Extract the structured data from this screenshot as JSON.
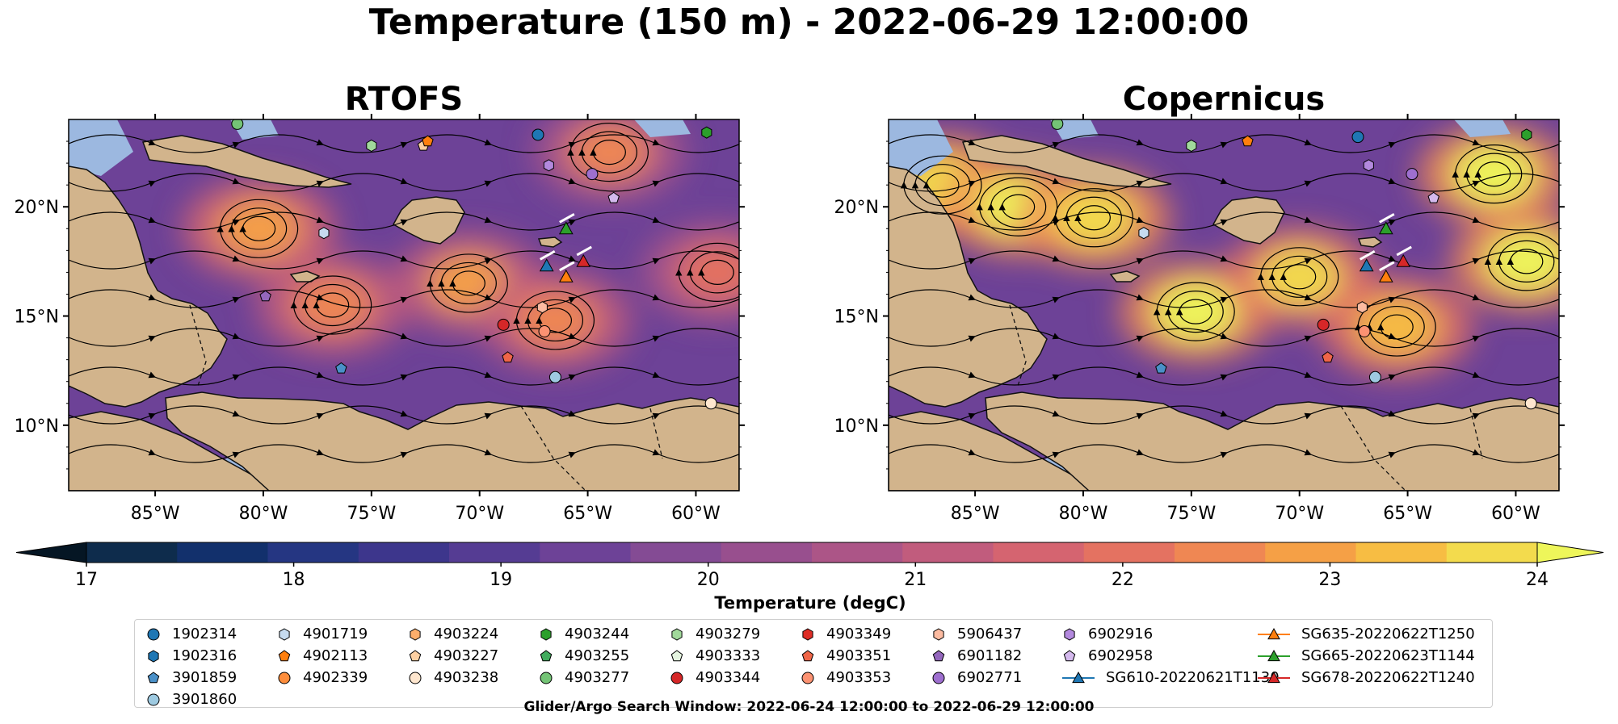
{
  "figure": {
    "title": "Temperature (150 m) - 2022-06-29 12:00:00",
    "footer": "Glider/Argo Search Window: 2022-06-24 12:00:00 to 2022-06-29 12:00:00"
  },
  "chart_data": [
    {
      "type": "heatmap",
      "title": "RTOFS",
      "xlim": [
        -89,
        -58
      ],
      "ylim": [
        7,
        24
      ],
      "x_ticks": [
        -85,
        -80,
        -75,
        -70,
        -65,
        -60
      ],
      "x_tick_labels": [
        "85°W",
        "80°W",
        "75°W",
        "70°W",
        "65°W",
        "60°W"
      ],
      "y_ticks": [
        10,
        15,
        20
      ],
      "y_tick_labels": [
        "10°N",
        "15°N",
        "20°N"
      ],
      "warm_cores": [
        {
          "lon": -80.2,
          "lat": 19.0,
          "value": 23.0
        },
        {
          "lon": -76.8,
          "lat": 15.5,
          "value": 22.5
        },
        {
          "lon": -70.5,
          "lat": 16.5,
          "value": 22.8
        },
        {
          "lon": -66.5,
          "lat": 14.8,
          "value": 22.5
        },
        {
          "lon": -64.0,
          "lat": 22.5,
          "value": 22.3
        },
        {
          "lon": -59.0,
          "lat": 17.0,
          "value": 22.0
        }
      ],
      "floats": [
        {
          "id": "1902314",
          "lon": -67.3,
          "lat": 23.3
        },
        {
          "id": "4903244",
          "lon": -59.5,
          "lat": 23.4
        },
        {
          "id": "4903277",
          "lon": -81.2,
          "lat": 23.8
        },
        {
          "id": "4903279",
          "lon": -75.0,
          "lat": 22.8
        },
        {
          "id": "4903227",
          "lon": -72.6,
          "lat": 22.8
        },
        {
          "id": "4902113",
          "lon": -72.4,
          "lat": 23.0
        },
        {
          "id": "6902916",
          "lon": -66.8,
          "lat": 21.9
        },
        {
          "id": "6902771",
          "lon": -64.8,
          "lat": 21.5
        },
        {
          "id": "6902958",
          "lon": -63.8,
          "lat": 20.4
        },
        {
          "id": "4901719",
          "lon": -77.2,
          "lat": 18.8
        },
        {
          "id": "5906437",
          "lon": -67.1,
          "lat": 15.4
        },
        {
          "id": "4903344",
          "lon": -68.9,
          "lat": 14.6
        },
        {
          "id": "4903353",
          "lon": -67.0,
          "lat": 14.3
        },
        {
          "id": "4903351",
          "lon": -68.7,
          "lat": 13.1
        },
        {
          "id": "3901859",
          "lon": -76.4,
          "lat": 12.6
        },
        {
          "id": "3901860",
          "lon": -66.5,
          "lat": 12.2
        },
        {
          "id": "4903238",
          "lon": -59.3,
          "lat": 11.0
        },
        {
          "id": "6901182",
          "lon": -79.9,
          "lat": 15.9
        }
      ],
      "gliders": [
        {
          "id": "SG610-20220621T1130",
          "lon": -66.9,
          "lat": 17.3
        },
        {
          "id": "SG635-20220622T1250",
          "lon": -66.0,
          "lat": 16.8
        },
        {
          "id": "SG665-20220623T1144",
          "lon": -66.0,
          "lat": 19.0
        },
        {
          "id": "SG678-20220622T1240",
          "lon": -65.2,
          "lat": 17.5
        }
      ]
    },
    {
      "type": "heatmap",
      "title": "Copernicus",
      "xlim": [
        -89,
        -58
      ],
      "ylim": [
        7,
        24
      ],
      "x_ticks": [
        -85,
        -80,
        -75,
        -70,
        -65,
        -60
      ],
      "x_tick_labels": [
        "85°W",
        "80°W",
        "75°W",
        "70°W",
        "65°W",
        "60°W"
      ],
      "y_ticks": [
        10,
        15,
        20
      ],
      "y_tick_labels": [
        "10°N",
        "15°N",
        "20°N"
      ],
      "warm_cores": [
        {
          "lon": -86.5,
          "lat": 21.0,
          "value": 23.8
        },
        {
          "lon": -83.0,
          "lat": 20.0,
          "value": 24.0
        },
        {
          "lon": -79.5,
          "lat": 19.5,
          "value": 23.8
        },
        {
          "lon": -74.8,
          "lat": 15.2,
          "value": 24.0
        },
        {
          "lon": -70.0,
          "lat": 16.8,
          "value": 23.7
        },
        {
          "lon": -61.0,
          "lat": 21.5,
          "value": 24.0
        },
        {
          "lon": -59.5,
          "lat": 17.5,
          "value": 24.0
        },
        {
          "lon": -65.5,
          "lat": 14.5,
          "value": 23.5
        }
      ],
      "floats": [
        {
          "id": "1902314",
          "lon": -67.3,
          "lat": 23.2
        },
        {
          "id": "4903244",
          "lon": -59.5,
          "lat": 23.3
        },
        {
          "id": "4903277",
          "lon": -81.2,
          "lat": 23.8
        },
        {
          "id": "4903279",
          "lon": -75.0,
          "lat": 22.8
        },
        {
          "id": "4902113",
          "lon": -72.4,
          "lat": 23.0
        },
        {
          "id": "6902916",
          "lon": -66.8,
          "lat": 21.9
        },
        {
          "id": "6902771",
          "lon": -64.8,
          "lat": 21.5
        },
        {
          "id": "6902958",
          "lon": -63.8,
          "lat": 20.4
        },
        {
          "id": "4901719",
          "lon": -77.2,
          "lat": 18.8
        },
        {
          "id": "5906437",
          "lon": -67.1,
          "lat": 15.4
        },
        {
          "id": "4903344",
          "lon": -68.9,
          "lat": 14.6
        },
        {
          "id": "4903353",
          "lon": -67.0,
          "lat": 14.3
        },
        {
          "id": "4903351",
          "lon": -68.7,
          "lat": 13.1
        },
        {
          "id": "3901859",
          "lon": -76.4,
          "lat": 12.6
        },
        {
          "id": "3901860",
          "lon": -66.5,
          "lat": 12.2
        },
        {
          "id": "4903238",
          "lon": -59.3,
          "lat": 11.0
        }
      ],
      "gliders": [
        {
          "id": "SG610-20220621T1130",
          "lon": -66.9,
          "lat": 17.3
        },
        {
          "id": "SG635-20220622T1250",
          "lon": -66.0,
          "lat": 16.8
        },
        {
          "id": "SG665-20220623T1144",
          "lon": -66.0,
          "lat": 19.0
        },
        {
          "id": "SG678-20220622T1240",
          "lon": -65.2,
          "lat": 17.5
        }
      ]
    }
  ],
  "colorbar": {
    "label": "Temperature (degC)",
    "min": 17,
    "max": 24,
    "step": 0.5,
    "ticks": [
      "17",
      "18",
      "19",
      "20",
      "21",
      "22",
      "23",
      "24"
    ],
    "colors": [
      "#0e2c4c",
      "#12306c",
      "#253682",
      "#3d368c",
      "#553c93",
      "#6d4297",
      "#844b94",
      "#984f8e",
      "#ac5587",
      "#c15c7d",
      "#d56470",
      "#e47261",
      "#ef8753",
      "#f5a046",
      "#f7bd43",
      "#f3db4d"
    ],
    "extend_low": "#051624",
    "extend_high": "#eef65a"
  },
  "legend": {
    "columns": [
      [
        {
          "label": "1902314",
          "marker": "circle",
          "color": "#1f77b4"
        },
        {
          "label": "1902316",
          "marker": "hexagon",
          "color": "#1f77b4"
        },
        {
          "label": "3901859",
          "marker": "pentagon",
          "color": "#4a90c8"
        },
        {
          "label": "3901860",
          "marker": "circle",
          "color": "#9ecae1"
        }
      ],
      [
        {
          "label": "4901719",
          "marker": "hexagon",
          "color": "#c6dbef"
        },
        {
          "label": "4902113",
          "marker": "pentagon",
          "color": "#ff7f0e"
        },
        {
          "label": "4902339",
          "marker": "circle",
          "color": "#fd8d3c"
        }
      ],
      [
        {
          "label": "4903224",
          "marker": "hexagon",
          "color": "#fdae6b"
        },
        {
          "label": "4903227",
          "marker": "pentagon",
          "color": "#fdd0a2"
        },
        {
          "label": "4903238",
          "marker": "circle",
          "color": "#fee6ce"
        }
      ],
      [
        {
          "label": "4903244",
          "marker": "hexagon",
          "color": "#2ca02c"
        },
        {
          "label": "4903255",
          "marker": "pentagon",
          "color": "#41ab5d"
        },
        {
          "label": "4903277",
          "marker": "circle",
          "color": "#74c476"
        }
      ],
      [
        {
          "label": "4903279",
          "marker": "hexagon",
          "color": "#a1d99b"
        },
        {
          "label": "4903333",
          "marker": "pentagon",
          "color": "#e5f5e0"
        },
        {
          "label": "4903344",
          "marker": "circle",
          "color": "#d62728"
        }
      ],
      [
        {
          "label": "4903349",
          "marker": "hexagon",
          "color": "#de2d26"
        },
        {
          "label": "4903351",
          "marker": "pentagon",
          "color": "#ef6548"
        },
        {
          "label": "4903353",
          "marker": "circle",
          "color": "#fc9272"
        }
      ],
      [
        {
          "label": "5906437",
          "marker": "hexagon",
          "color": "#fcbba1"
        },
        {
          "label": "6901182",
          "marker": "pentagon",
          "color": "#9467bd"
        },
        {
          "label": "6902771",
          "marker": "circle",
          "color": "#9e6fcf"
        }
      ],
      [
        {
          "label": "6902916",
          "marker": "hexagon",
          "color": "#b389de"
        },
        {
          "label": "6902958",
          "marker": "pentagon",
          "color": "#d4b9ed"
        },
        {
          "label": "SG610-20220621T1130",
          "marker": "glider",
          "color": "#1f77b4"
        }
      ],
      [
        {
          "label": "SG635-20220622T1250",
          "marker": "glider",
          "color": "#ff7f0e"
        },
        {
          "label": "SG665-20220623T1144",
          "marker": "glider",
          "color": "#2ca02c"
        },
        {
          "label": "SG678-20220622T1240",
          "marker": "glider",
          "color": "#d62728"
        }
      ]
    ]
  }
}
